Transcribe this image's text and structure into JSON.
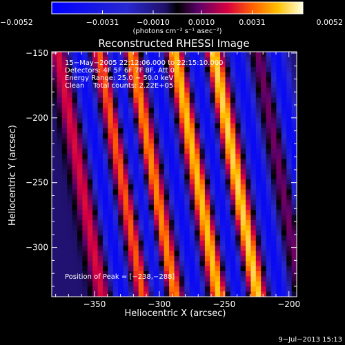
{
  "chart_data": {
    "type": "heatmap",
    "title": "Reconstructed RHESSI Image",
    "xlabel": "Heliocentric X (arcsec)",
    "ylabel": "Heliocentric Y (arcsec)",
    "xlim": [
      -383,
      -194
    ],
    "ylim": [
      -338,
      -149
    ],
    "xticks": [
      -350,
      -300,
      -250,
      -200
    ],
    "xtick_labels": [
      "−350",
      "−300",
      "−250",
      "−200"
    ],
    "yticks": [
      -150,
      -200,
      -250,
      -300
    ],
    "ytick_labels": [
      "−150",
      "−200",
      "−250",
      "−300"
    ],
    "colorbar": {
      "min": -0.0052,
      "max": 0.0052,
      "ticks": [
        -0.0052,
        -0.0031,
        -0.001,
        0.001,
        0.0031,
        0.0052
      ],
      "tick_labels": [
        "−0.0052",
        "−0.0031",
        "−0.0010",
        "0.0010",
        "0.0031",
        "0.0052"
      ],
      "label": "(photons cm⁻² s⁻¹ asec⁻²)"
    },
    "annotations": {
      "time_range": "15−May−2005 22:12:06.000 to 22:15:10.000",
      "detectors": "Detectors: 4F 5F 6F 7F 8F, Att 0",
      "energy": "Energy Range: 25.0 − 50.0 keV",
      "clean": "Clean    Total counts: 2.22E+05",
      "peak": "Position of Peak = [−238,−288]"
    },
    "peak_position": [
      -238,
      -288
    ],
    "stripes": {
      "description": "diagonal fringe pattern; ridge x at y=-150 and slope dx/dy",
      "ridge_x_at_top": [
        -378,
        -346,
        -322,
        -288,
        -258,
        -223
      ],
      "trough_x_at_top": [
        -362,
        -334,
        -305,
        -273,
        -240,
        -210
      ],
      "amplitude": [
        0.55,
        0.75,
        0.85,
        0.95,
        1.0,
        0.35
      ]
    }
  },
  "footer": {
    "timestamp": "9−Jul−2013 15:13"
  }
}
